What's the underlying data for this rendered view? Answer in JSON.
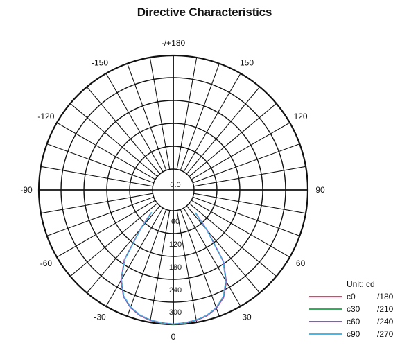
{
  "chart_data": {
    "type": "polar",
    "title": "Directive Characteristics",
    "unit_label": "Unit: cd",
    "angle_labels": [
      {
        "angle": 180,
        "text": "-/+180"
      },
      {
        "angle": 150,
        "text": "150"
      },
      {
        "angle": 120,
        "text": "120"
      },
      {
        "angle": 90,
        "text": "90"
      },
      {
        "angle": 60,
        "text": "60"
      },
      {
        "angle": 30,
        "text": "30"
      },
      {
        "angle": 0,
        "text": "0"
      },
      {
        "angle": -30,
        "text": "-30"
      },
      {
        "angle": -60,
        "text": "-60"
      },
      {
        "angle": -90,
        "text": "-90"
      },
      {
        "angle": -120,
        "text": "-120"
      },
      {
        "angle": -150,
        "text": "-150"
      }
    ],
    "radial_ticks": [
      "0.0",
      "60",
      "120",
      "180",
      "240",
      "300"
    ],
    "r_max": 300,
    "angular_gridline_step_deg": 10,
    "series": [
      {
        "name": "c0",
        "pair": "/180",
        "color": "#e8415f",
        "points": [
          [
            -44,
            30
          ],
          [
            -40,
            80
          ],
          [
            -35,
            170
          ],
          [
            -30,
            220
          ],
          [
            -25,
            255
          ],
          [
            -20,
            275
          ],
          [
            -15,
            288
          ],
          [
            -10,
            295
          ],
          [
            -5,
            298
          ],
          [
            0,
            300
          ],
          [
            5,
            298
          ],
          [
            10,
            295
          ],
          [
            15,
            289
          ],
          [
            20,
            277
          ],
          [
            25,
            258
          ],
          [
            30,
            224
          ],
          [
            35,
            175
          ],
          [
            40,
            84
          ],
          [
            44,
            30
          ]
        ]
      },
      {
        "name": "c30",
        "pair": "/210",
        "color": "#2fae5c",
        "points": [
          [
            -44,
            28
          ],
          [
            -40,
            78
          ],
          [
            -35,
            168
          ],
          [
            -30,
            218
          ],
          [
            -25,
            254
          ],
          [
            -20,
            274
          ],
          [
            -15,
            287
          ],
          [
            -10,
            294
          ],
          [
            -5,
            298
          ],
          [
            0,
            300
          ],
          [
            5,
            298
          ],
          [
            10,
            294
          ],
          [
            15,
            288
          ],
          [
            20,
            276
          ],
          [
            25,
            256
          ],
          [
            30,
            222
          ],
          [
            35,
            173
          ],
          [
            40,
            82
          ],
          [
            44,
            29
          ]
        ]
      },
      {
        "name": "c60",
        "pair": "/240",
        "color": "#7a5fc8",
        "points": [
          [
            -44,
            29
          ],
          [
            -40,
            79
          ],
          [
            -35,
            169
          ],
          [
            -30,
            219
          ],
          [
            -25,
            255
          ],
          [
            -20,
            275
          ],
          [
            -15,
            287
          ],
          [
            -10,
            294
          ],
          [
            -5,
            297
          ],
          [
            0,
            299
          ],
          [
            5,
            297
          ],
          [
            10,
            294
          ],
          [
            15,
            288
          ],
          [
            20,
            276
          ],
          [
            25,
            257
          ],
          [
            30,
            223
          ],
          [
            35,
            174
          ],
          [
            40,
            83
          ],
          [
            44,
            30
          ]
        ]
      },
      {
        "name": "c90",
        "pair": "/270",
        "color": "#47b8e6",
        "points": [
          [
            -44,
            27
          ],
          [
            -40,
            77
          ],
          [
            -35,
            167
          ],
          [
            -30,
            217
          ],
          [
            -25,
            253
          ],
          [
            -20,
            273
          ],
          [
            -15,
            286
          ],
          [
            -10,
            293
          ],
          [
            -5,
            297
          ],
          [
            0,
            299
          ],
          [
            5,
            297
          ],
          [
            10,
            293
          ],
          [
            15,
            287
          ],
          [
            20,
            275
          ],
          [
            25,
            255
          ],
          [
            30,
            221
          ],
          [
            35,
            172
          ],
          [
            40,
            81
          ],
          [
            44,
            28
          ]
        ]
      }
    ],
    "grid": true,
    "legend_position": "bottom-right"
  }
}
